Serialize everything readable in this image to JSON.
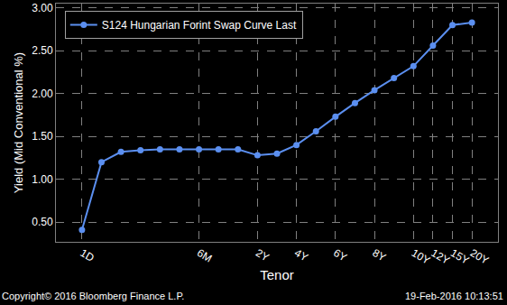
{
  "chart_data": {
    "type": "line",
    "x_label": "Tenor",
    "y_label": "Yield (Mid Conventional %)",
    "categories": [
      "1D",
      null,
      null,
      null,
      null,
      null,
      "6M",
      null,
      null,
      "2Y",
      null,
      "4Y",
      null,
      "6Y",
      null,
      "8Y",
      null,
      "10Y",
      "12Y",
      "15Y",
      "20Y"
    ],
    "series": [
      {
        "name": "S124 Hungarian Forint Swap Curve Last",
        "color": "#5b8ff0",
        "marker": "circle",
        "line_style": "solid",
        "values": [
          0.41,
          1.2,
          1.32,
          1.34,
          1.35,
          1.35,
          1.35,
          1.35,
          1.35,
          1.28,
          1.3,
          1.4,
          1.56,
          1.73,
          1.89,
          2.04,
          2.18,
          2.32,
          2.56,
          2.8,
          2.83
        ]
      }
    ],
    "ylim": [
      0.27,
      3.05
    ],
    "yticks": [
      {
        "value": 0.5,
        "label": "0.50"
      },
      {
        "value": 1,
        "label": "1.00"
      },
      {
        "value": 1.5,
        "label": "1.50"
      },
      {
        "value": 2,
        "label": "2.00"
      },
      {
        "value": 2.5,
        "label": "2.50"
      },
      {
        "value": 3,
        "label": "3.00"
      }
    ],
    "grid": true,
    "legend": "upper left",
    "annotations": [
      "Copyright© 2016 Bloomberg Finance L.P.",
      "19-Feb-2016 10:13:51"
    ]
  }
}
